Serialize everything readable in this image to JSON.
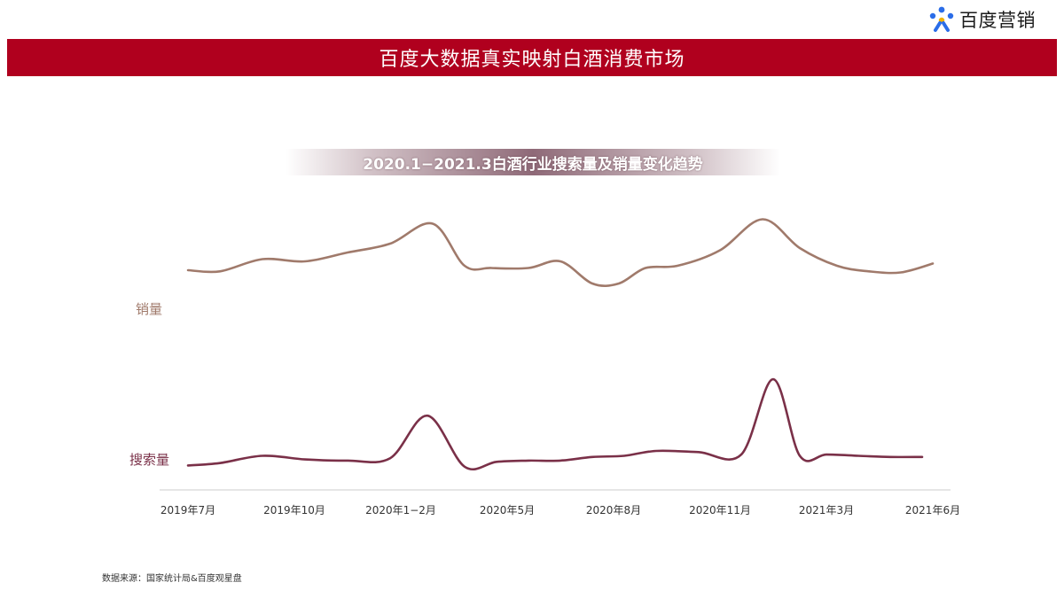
{
  "header": {
    "logo_text": "百度营销",
    "banner_title": "百度大数据真实映射白酒消费市场"
  },
  "colors": {
    "banner": "#b0001e",
    "sales_line": "#a07a6b",
    "search_line": "#7a3048",
    "axis": "#cccccc"
  },
  "chart_data": {
    "type": "line",
    "title": "2020.1−2021.3白酒行业搜索量及销量变化趋势",
    "xlabel": "",
    "ylabel": "",
    "categories": [
      "2019年7月",
      "2019年10月",
      "2020年1−2月",
      "2020年5月",
      "2020年8月",
      "2020年11月",
      "2021年3月",
      "2021年6月"
    ],
    "y_axis_labels": false,
    "grid": false,
    "legend_placement": "left",
    "series": [
      {
        "name": "销量",
        "color": "#a07a6b",
        "x": [
          0,
          0.3,
          0.7,
          1.1,
          1.5,
          1.9,
          2.3,
          2.6,
          2.85,
          3.2,
          3.5,
          3.8,
          4.05,
          4.3,
          4.6,
          5.0,
          5.4,
          5.75,
          6.1,
          6.4,
          6.7,
          7.0
        ],
        "values": [
          56,
          55,
          66,
          64,
          72,
          80,
          98,
          60,
          58,
          58,
          64,
          44,
          44,
          58,
          60,
          74,
          102,
          76,
          60,
          55,
          54,
          62
        ]
      },
      {
        "name": "搜索量",
        "color": "#7a3048",
        "x": [
          0,
          0.3,
          0.7,
          1.1,
          1.5,
          1.9,
          2.25,
          2.6,
          2.9,
          3.2,
          3.5,
          3.8,
          4.1,
          4.4,
          4.8,
          5.2,
          5.5,
          5.75,
          6.0,
          6.3,
          6.6,
          6.9
        ],
        "values": [
          7,
          9,
          15,
          12,
          11,
          13,
          48,
          6,
          10,
          11,
          11,
          14,
          15,
          19,
          18,
          16,
          78,
          15,
          16,
          15,
          14,
          14
        ]
      }
    ]
  },
  "footer": {
    "source": "数据来源：国家统计局&百度观星盘"
  }
}
